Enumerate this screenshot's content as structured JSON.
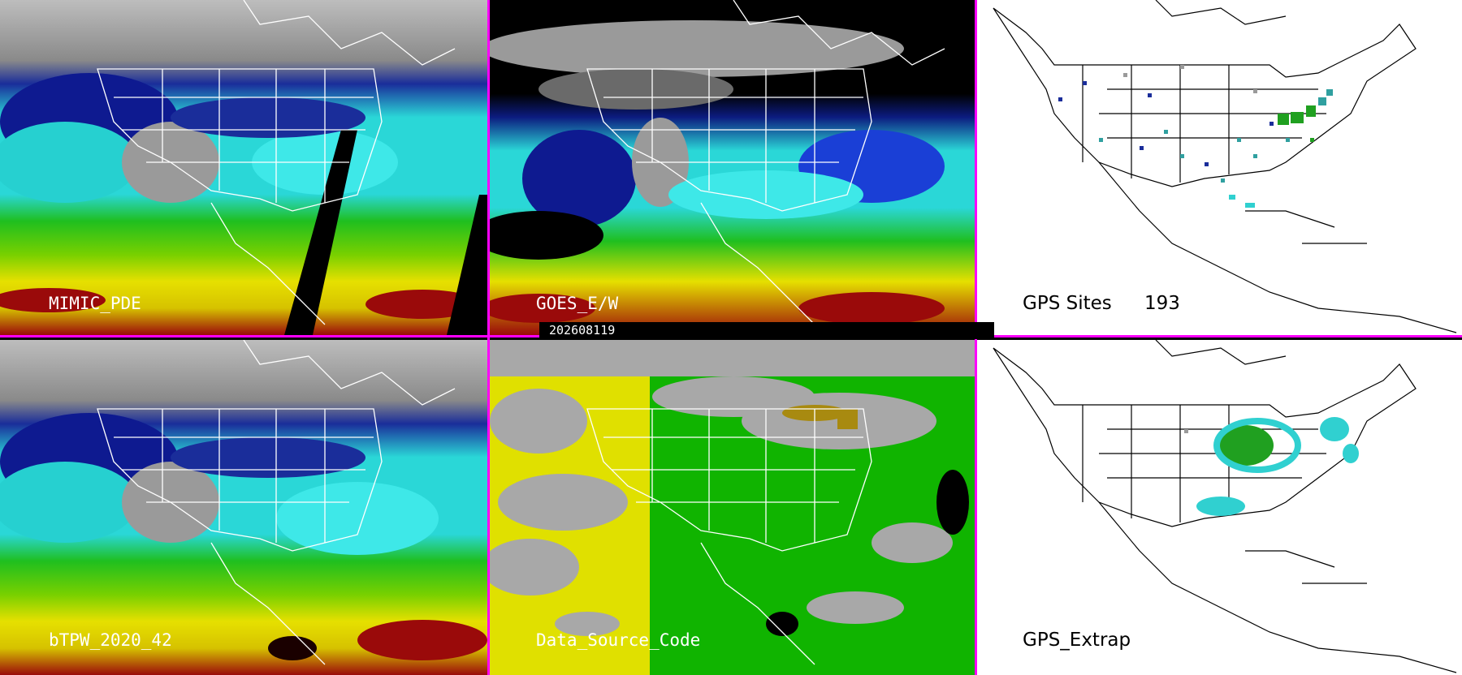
{
  "panels": {
    "top_left": {
      "label": "MIMIC_PDE"
    },
    "top_middle": {
      "label": "GOES_E/W"
    },
    "top_right": {
      "label": "GPS Sites",
      "count": "193"
    },
    "bottom_left": {
      "label": "bTPW_2020_42"
    },
    "bottom_middle": {
      "label": "Data_Source_Code"
    },
    "bottom_right": {
      "label": "GPS_Extrap"
    }
  },
  "date_label": "202608119",
  "colors": {
    "divider": "#ff00ff",
    "tpw_dry_navy": "#00008b",
    "tpw_blue": "#1a3fd6",
    "tpw_cyan": "#20e0e0",
    "tpw_green": "#18c000",
    "tpw_yellow": "#e8e000",
    "tpw_red": "#a00000",
    "source_gray": "#a8a8a8",
    "source_yellow": "#e0e000",
    "source_green": "#10b400",
    "gps_site_navy": "#1a2d9a",
    "gps_site_teal": "#30a0a0",
    "gps_site_green": "#20a020"
  }
}
